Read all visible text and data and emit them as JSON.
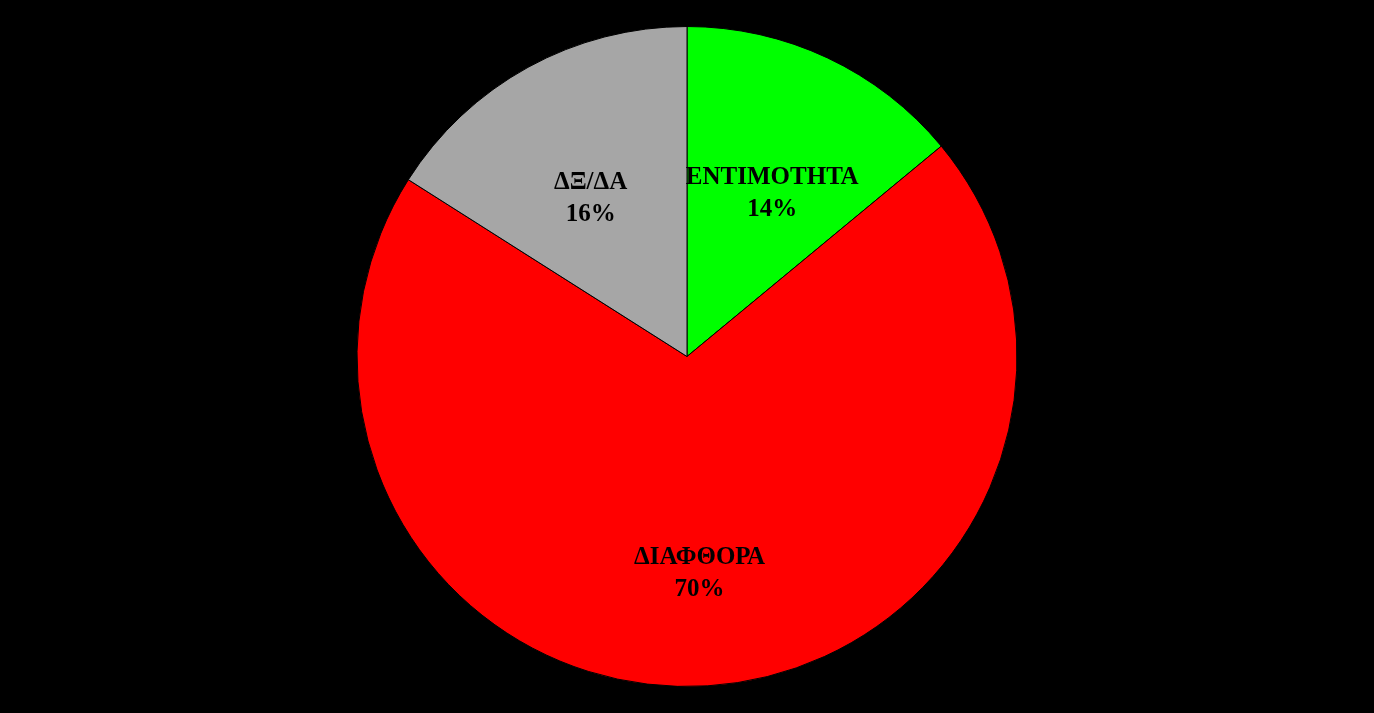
{
  "chart_data": {
    "type": "pie",
    "categories": [
      "ΕΝΤΙΜΟΤΗΤΑ",
      "ΔΙΑΦΘΟΡΑ",
      "ΔΞ/ΔΑ"
    ],
    "values": [
      14,
      70,
      16
    ],
    "colors": [
      "#00ff00",
      "#ff0000",
      "#a6a6a6"
    ],
    "value_labels": [
      "14%",
      "70%",
      "16%"
    ]
  }
}
